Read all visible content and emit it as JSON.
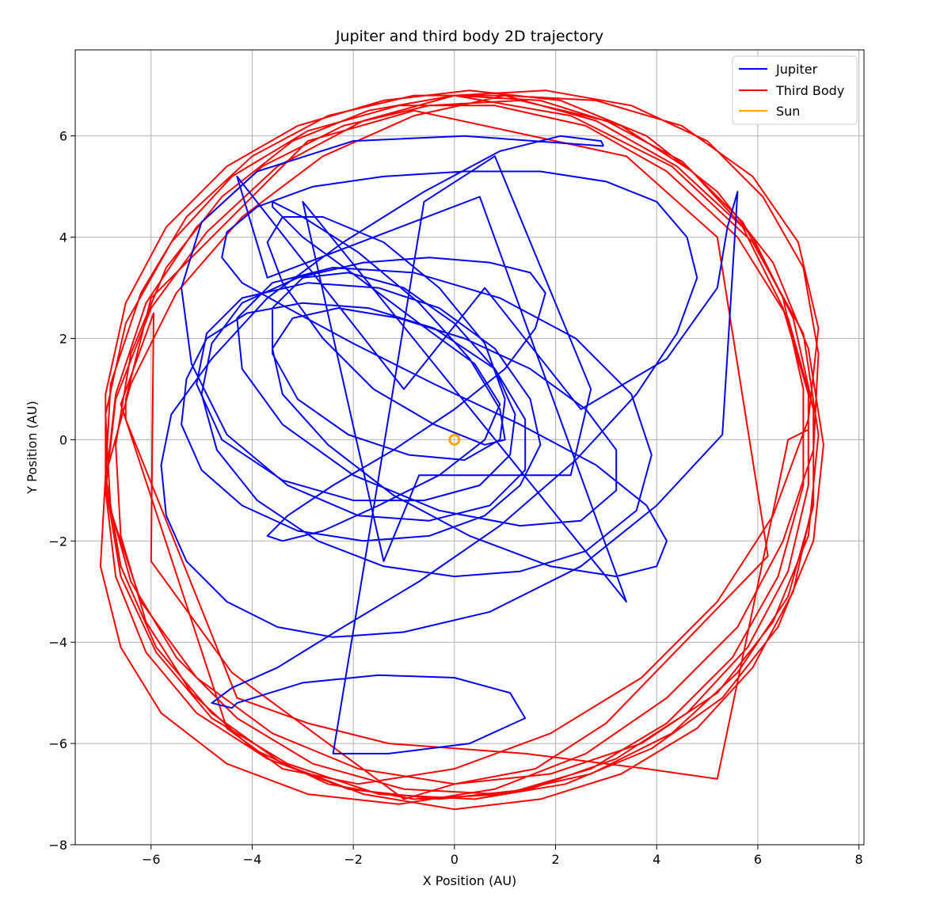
{
  "chart_data": {
    "type": "line",
    "title": "Jupiter and third body 2D trajectory",
    "xlabel": "X Position (AU)",
    "ylabel": "Y Position (AU)",
    "xlim": [
      -7.5,
      8.1
    ],
    "ylim": [
      -8.0,
      7.7
    ],
    "xticks": [
      -6,
      -4,
      -2,
      0,
      2,
      4,
      6,
      8
    ],
    "yticks": [
      -8,
      -6,
      -4,
      -2,
      0,
      2,
      4,
      6
    ],
    "xtick_labels": [
      "−6",
      "−4",
      "−2",
      "0",
      "2",
      "4",
      "6",
      "8"
    ],
    "ytick_labels": [
      "−8",
      "−6",
      "−4",
      "−2",
      "0",
      "2",
      "4",
      "6"
    ],
    "grid": true,
    "legend_position": "top-right",
    "series": [
      {
        "name": "Jupiter",
        "color": "#0000ff",
        "x": [
          2.95,
          0.2,
          -2.0,
          -3.9,
          -5.0,
          -5.4,
          -5.2,
          -4.5,
          -3.3,
          -1.9,
          -0.5,
          0.7,
          1.4,
          1.4,
          0.8,
          -0.4,
          -1.7,
          -3.0,
          -4.1,
          -4.9,
          -5.3,
          -5.4,
          -5.0,
          -4.2,
          -3.1,
          -1.8,
          -0.5,
          0.6,
          1.3,
          1.7,
          1.5,
          0.8,
          -0.3,
          -1.5,
          -2.9,
          -4.2,
          -4.9,
          -5.1,
          -4.6,
          -3.4,
          -2.0,
          -0.6,
          0.5,
          1.1,
          1.2,
          0.8,
          0.0,
          -1.0,
          -2.1,
          -3.0,
          -3.6,
          -3.6,
          -3.1,
          -2.1,
          -0.9,
          0.2,
          0.9,
          1.0,
          0.6,
          -0.3,
          -1.4,
          -2.6,
          -3.4,
          -3.7,
          -3.4,
          -2.6,
          -1.6,
          -0.4,
          0.6,
          1.0,
          0.9,
          0.3,
          -0.7,
          -1.9,
          -3.0,
          -3.6,
          -3.6,
          -3.0,
          -1.9,
          -0.7,
          0.4,
          0.9,
          0.6,
          -0.3,
          -1.5,
          -2.6,
          -3.4,
          -3.7,
          -3.3,
          -2.4,
          -1.2,
          0.0,
          1.0,
          1.6,
          1.8,
          1.5,
          0.7,
          -0.5,
          -1.8,
          -3.1,
          -4.2,
          -4.8,
          -5.0,
          -4.7,
          -3.9,
          -2.7,
          -1.4,
          0.0,
          1.3,
          2.6,
          3.6,
          3.9,
          3.5,
          2.4,
          0.9,
          -0.8,
          -2.4,
          -3.6,
          -4.3,
          -4.2,
          -3.4,
          -2.0,
          -0.3,
          1.3,
          2.5,
          3.2,
          3.2,
          2.6,
          1.5,
          0.2,
          -1.1,
          -2.3,
          -3.2,
          -3.6,
          -3.4,
          -2.5,
          -1.2,
          0.3,
          1.9,
          3.2,
          4.0,
          4.2,
          3.8,
          2.8,
          1.3,
          -0.4,
          -2.0,
          -3.3,
          -4.2,
          -4.6,
          -4.5,
          -3.9,
          -2.8,
          -1.4,
          0.2,
          1.7,
          3.0,
          4.0,
          4.6,
          4.8,
          4.4,
          3.6,
          2.4,
          0.9,
          -0.7,
          -2.2,
          -3.5,
          -4.4,
          -4.8,
          -4.4,
          -4.3,
          -3.0,
          -1.5,
          0.0,
          1.1,
          1.4,
          0.3,
          -1.3,
          -2.4,
          -0.6,
          0.8,
          2.7,
          2.3,
          -0.7,
          -1.4,
          -3.0,
          3.4,
          0.5,
          -3.7,
          -4.3,
          -1.0,
          0.6,
          2.5,
          4.2,
          5.2,
          5.4,
          5.6,
          5.3,
          4.0,
          2.5,
          0.7,
          -1.0,
          -2.4,
          -3.5,
          -4.5,
          -5.3,
          -5.7,
          -5.8,
          -5.6,
          -4.8,
          -3.7,
          -2.2,
          -0.6,
          0.9,
          2.1,
          2.9,
          2.95
        ],
        "y": [
          5.8,
          6.0,
          5.9,
          5.3,
          4.3,
          3.0,
          1.5,
          0.1,
          -0.9,
          -1.5,
          -1.6,
          -1.3,
          -0.6,
          0.4,
          1.4,
          2.2,
          2.6,
          2.7,
          2.5,
          2.0,
          1.2,
          0.3,
          -0.6,
          -1.3,
          -1.8,
          -2.0,
          -1.9,
          -1.5,
          -0.9,
          -0.1,
          0.8,
          1.8,
          2.6,
          3.0,
          3.1,
          2.8,
          2.1,
          1.1,
          0.0,
          -0.8,
          -1.2,
          -1.2,
          -0.9,
          -0.3,
          0.5,
          1.4,
          2.3,
          3.0,
          3.3,
          3.2,
          2.6,
          1.7,
          0.8,
          0.1,
          -0.3,
          -0.4,
          0.0,
          0.8,
          1.9,
          3.0,
          3.9,
          4.4,
          4.4,
          3.9,
          3.1,
          2.0,
          1.0,
          0.3,
          -0.1,
          0.0,
          0.6,
          1.6,
          2.7,
          3.7,
          4.4,
          4.7,
          4.6,
          4.0,
          3.2,
          2.3,
          1.5,
          0.7,
          0.0,
          -0.7,
          -1.3,
          -1.8,
          -2.0,
          -1.9,
          -1.5,
          -0.9,
          -0.2,
          0.6,
          1.4,
          2.2,
          2.9,
          3.3,
          3.5,
          3.6,
          3.5,
          3.2,
          2.7,
          1.9,
          0.9,
          -0.2,
          -1.2,
          -2.0,
          -2.5,
          -2.7,
          -2.6,
          -2.2,
          -1.4,
          -0.3,
          0.9,
          2.0,
          2.8,
          3.3,
          3.4,
          3.1,
          2.4,
          1.4,
          0.3,
          -0.7,
          -1.4,
          -1.7,
          -1.6,
          -1.0,
          -0.2,
          0.6,
          1.4,
          2.0,
          2.4,
          2.6,
          2.4,
          1.8,
          0.9,
          -0.1,
          -1.1,
          -1.9,
          -2.5,
          -2.7,
          -2.5,
          -2.0,
          -1.3,
          -0.5,
          0.3,
          1.1,
          1.9,
          2.6,
          3.1,
          3.6,
          4.1,
          4.6,
          5.0,
          5.2,
          5.3,
          5.3,
          5.1,
          4.7,
          4.0,
          3.2,
          2.1,
          0.9,
          -0.4,
          -1.7,
          -2.8,
          -3.7,
          -4.5,
          -4.9,
          -5.2,
          -5.3,
          -5.2,
          -4.8,
          -4.65,
          -4.7,
          -5.0,
          -5.5,
          -6.0,
          -6.2,
          -6.2,
          4.7,
          5.6,
          1.0,
          -0.7,
          -0.7,
          -2.4,
          4.7,
          -3.2,
          4.8,
          3.2,
          5.2,
          1.0,
          3.0,
          0.6,
          1.6,
          3.0,
          4.2,
          4.9,
          0.1,
          -1.3,
          -2.5,
          -3.4,
          -3.8,
          -3.9,
          -3.7,
          -3.2,
          -2.4,
          -1.5,
          -0.5,
          0.5,
          1.6,
          2.8,
          3.9,
          4.9,
          5.7,
          6.0,
          5.9,
          5.8
        ],
        "marker_size": 0
      },
      {
        "name": "Third Body",
        "color": "#ff0000",
        "x": [
          0.0,
          2.3,
          4.3,
          5.9,
          6.9,
          7.2,
          7.0,
          6.3,
          5.2,
          3.7,
          1.9,
          0.0,
          -1.9,
          -3.6,
          -5.1,
          -6.2,
          -6.8,
          -6.9,
          -6.5,
          -5.6,
          -4.4,
          -2.9,
          -1.1,
          0.8,
          2.6,
          4.2,
          5.6,
          6.6,
          7.1,
          7.1,
          6.6,
          5.6,
          4.3,
          2.7,
          0.9,
          -1.0,
          -2.8,
          -4.3,
          -5.5,
          -6.4,
          -6.9,
          -6.9,
          -6.5,
          -5.7,
          -4.5,
          -3.1,
          -1.4,
          0.3,
          2.1,
          3.8,
          5.2,
          6.3,
          7.0,
          7.3,
          7.1,
          6.4,
          5.3,
          3.9,
          2.2,
          0.4,
          -1.5,
          -3.3,
          -4.8,
          -5.9,
          -6.6,
          -6.9,
          -6.7,
          -6.1,
          -5.1,
          -3.8,
          -2.2,
          -0.5,
          1.3,
          3.0,
          4.5,
          5.7,
          6.5,
          6.9,
          6.9,
          6.4,
          5.5,
          4.2,
          2.7,
          1.0,
          -0.8,
          -2.5,
          -4.0,
          -5.2,
          -6.1,
          -6.6,
          -6.7,
          -6.4,
          -5.7,
          -4.6,
          -3.2,
          -1.7,
          0.0,
          1.7,
          3.3,
          4.7,
          5.9,
          6.7,
          7.1,
          7.1,
          6.7,
          5.9,
          4.8,
          3.3,
          1.7,
          0.0,
          -1.8,
          -3.4,
          -4.8,
          -5.9,
          -6.6,
          -6.9,
          -6.8,
          -6.2,
          -5.3,
          -4.0,
          -2.5,
          -0.8,
          1.0,
          2.8,
          4.4,
          5.7,
          6.5,
          7.0,
          7.0,
          6.6,
          5.8,
          4.6,
          3.2,
          1.5,
          -0.3,
          -2.1,
          -3.7,
          -5.1,
          -6.1,
          -6.7,
          -6.9,
          -6.7,
          -6.0,
          -4.9,
          -3.5,
          -1.8,
          0.0,
          1.8,
          3.5,
          5.0,
          6.1,
          6.9,
          7.2,
          7.1,
          6.5,
          5.6,
          4.2,
          2.6,
          0.8,
          -1.1,
          -2.9,
          -4.5,
          -5.8,
          -6.6,
          -7.0,
          -6.9,
          -6.4,
          -5.5,
          -4.2,
          -2.6,
          -0.8,
          1.0,
          2.8,
          4.5,
          5.9,
          6.8,
          7.2,
          7.0,
          6.3,
          5.2,
          3.7,
          1.9,
          0.0,
          -1.9,
          -3.4,
          -4.5,
          -6.6,
          -5.95,
          -6.0,
          -4.4,
          -1.0,
          0.0,
          1.6,
          3.0,
          6.2,
          5.2,
          3.4,
          -0.8,
          -2.9,
          -6.0,
          -6.5,
          -6.5,
          -4.3,
          -2.9,
          -1.3,
          1.4,
          3.8,
          5.2,
          6.6,
          7.0
        ],
        "y": [
          6.8,
          6.4,
          5.4,
          3.9,
          2.1,
          0.1,
          -1.9,
          -3.6,
          -5.0,
          -6.0,
          -6.6,
          -6.8,
          -6.5,
          -5.8,
          -4.7,
          -3.2,
          -1.4,
          0.5,
          2.3,
          3.9,
          5.2,
          6.1,
          6.6,
          6.6,
          6.2,
          5.3,
          4.0,
          2.4,
          0.6,
          -1.3,
          -3.1,
          -4.6,
          -5.8,
          -6.6,
          -7.0,
          -6.9,
          -6.4,
          -5.5,
          -4.3,
          -2.8,
          -1.0,
          0.9,
          2.7,
          4.2,
          5.4,
          6.2,
          6.7,
          6.9,
          6.7,
          6.0,
          4.9,
          3.5,
          1.8,
          -0.1,
          -2.0,
          -3.7,
          -5.1,
          -6.1,
          -6.8,
          -7.1,
          -7.0,
          -6.4,
          -5.5,
          -4.2,
          -2.7,
          -0.9,
          0.9,
          2.7,
          4.2,
          5.4,
          6.2,
          6.6,
          6.7,
          6.3,
          5.5,
          4.3,
          2.8,
          1.0,
          -0.9,
          -2.7,
          -4.3,
          -5.6,
          -6.5,
          -7.0,
          -7.1,
          -6.8,
          -6.1,
          -5.0,
          -3.6,
          -1.9,
          -0.1,
          1.7,
          3.4,
          4.8,
          5.9,
          6.5,
          6.8,
          6.7,
          6.2,
          5.3,
          4.0,
          2.4,
          0.6,
          -1.2,
          -3.0,
          -4.5,
          -5.7,
          -6.6,
          -7.1,
          -7.3,
          -7.0,
          -6.4,
          -5.4,
          -4.1,
          -2.5,
          -0.7,
          1.1,
          2.9,
          4.4,
          5.6,
          6.4,
          6.8,
          6.8,
          6.3,
          5.4,
          4.2,
          2.6,
          0.9,
          -0.9,
          -2.6,
          -4.1,
          -5.4,
          -6.3,
          -6.9,
          -7.1,
          -6.9,
          -6.3,
          -5.4,
          -4.2,
          -2.7,
          -1.0,
          0.8,
          2.6,
          4.1,
          5.4,
          6.3,
          6.8,
          6.9,
          6.6,
          5.9,
          4.8,
          3.4,
          1.7,
          -0.2,
          -2.0,
          -3.7,
          -5.1,
          -6.2,
          -6.9,
          -7.2,
          -7.0,
          -6.4,
          -5.4,
          -4.1,
          -2.5,
          -0.7,
          1.1,
          2.9,
          4.4,
          5.6,
          6.4,
          6.8,
          6.7,
          6.2,
          5.2,
          3.9,
          2.2,
          0.4,
          -1.5,
          -3.2,
          -4.7,
          -5.8,
          -6.5,
          -6.8,
          -6.5,
          -5.7,
          0.7,
          2.5,
          -2.4,
          -4.6,
          -7.1,
          -6.8,
          -6.5,
          -5.6,
          -2.3,
          4.0,
          5.6,
          6.5,
          5.9,
          2.8,
          0.8,
          0.4,
          -5.1,
          -5.6,
          -6.0,
          -6.2,
          -6.5,
          -6.7,
          0.0,
          0.2
        ],
        "marker_size": 0
      },
      {
        "name": "Sun",
        "color": "#ffa500",
        "x": [
          0.0
        ],
        "y": [
          0.0
        ],
        "marker_size": 6
      }
    ]
  }
}
